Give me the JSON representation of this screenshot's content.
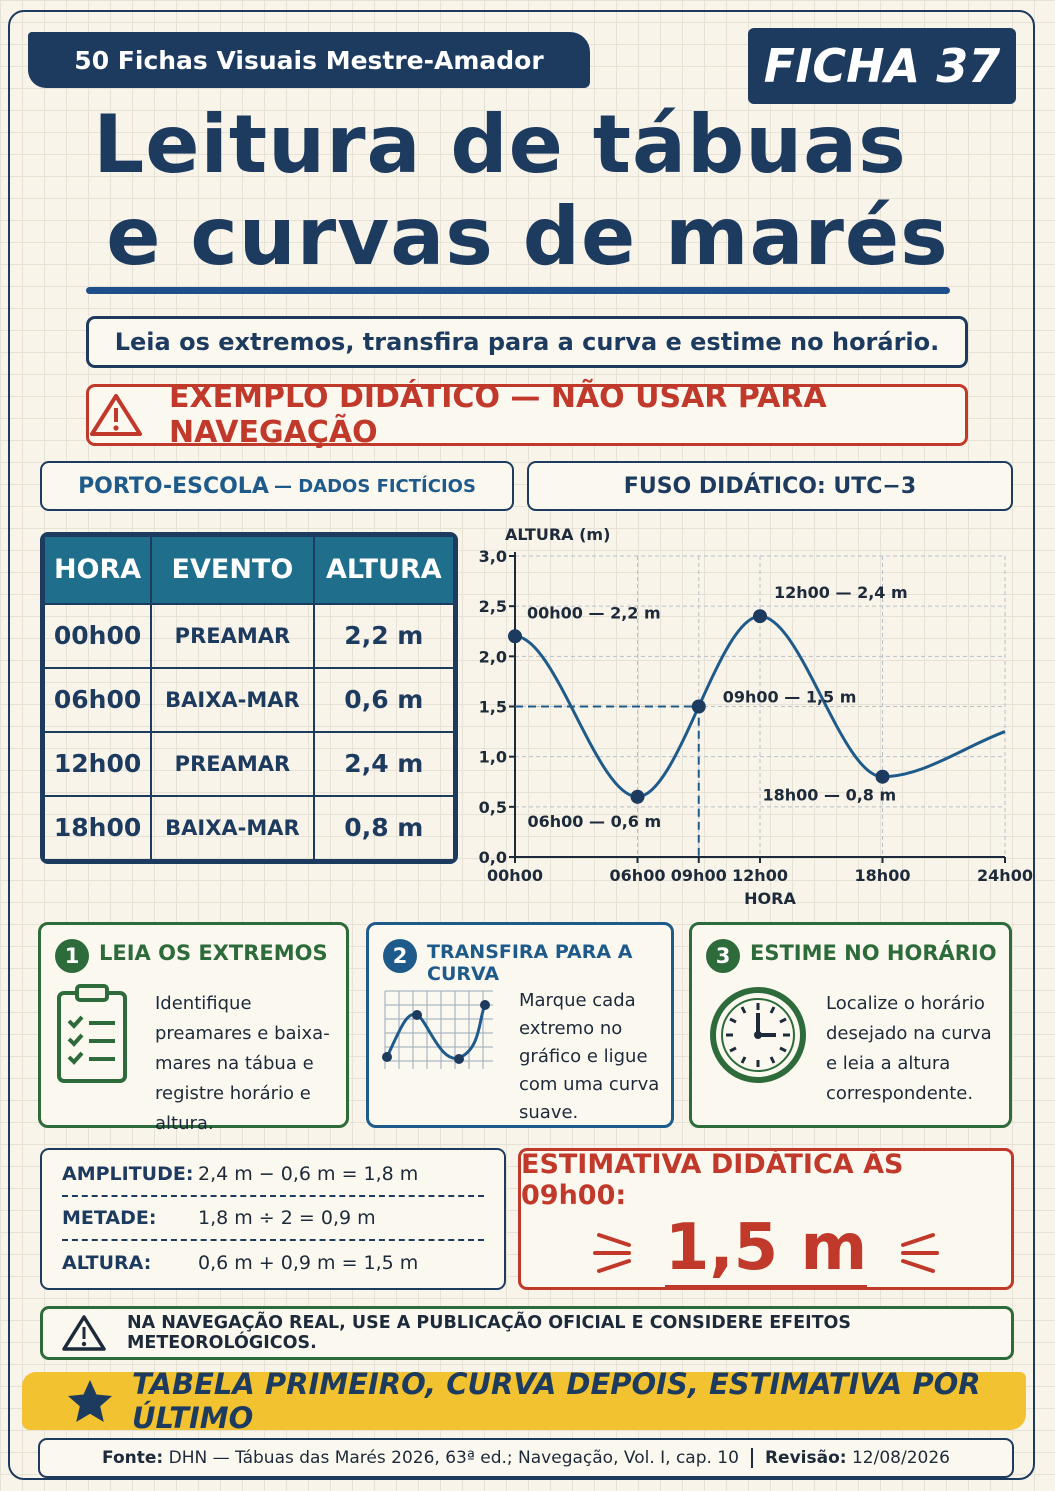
{
  "header": {
    "series": "50 Fichas Visuais Mestre-Amador",
    "sheet": "FICHA 37",
    "title_line1": "Leitura de tábuas",
    "title_line2": "e curvas de marés"
  },
  "summary": "Leia os extremos, transfira para a curva e estime no horário.",
  "warning": "EXEMPLO DIDÁTICO — NÃO USAR PARA NAVEGAÇÃO",
  "port": {
    "name": "PORTO-ESCOLA",
    "note": "— DADOS FICTÍCIOS"
  },
  "timezone": "FUSO DIDÁTICO: UTC−3",
  "table": {
    "headers": [
      "HORA",
      "EVENTO",
      "ALTURA"
    ],
    "rows": [
      [
        "00h00",
        "PREAMAR",
        "2,2 m"
      ],
      [
        "06h00",
        "BAIXA-MAR",
        "0,6 m"
      ],
      [
        "12h00",
        "PREAMAR",
        "2,4 m"
      ],
      [
        "18h00",
        "BAIXA-MAR",
        "0,8 m"
      ]
    ]
  },
  "chart_data": {
    "type": "line",
    "y_label": "ALTURA (m)",
    "x_label": "HORA",
    "x": [
      0,
      6,
      9,
      12,
      18,
      24
    ],
    "series": [
      {
        "color": "#1f5b8a",
        "values": [
          2.2,
          0.6,
          1.5,
          2.4,
          0.8,
          1.25
        ],
        "value_labels": [
          "00h00 — 2,2 m",
          "06h00 — 0,6 m",
          "09h00 — 1,5 m",
          "12h00 — 2,4 m",
          "18h00 — 0,8 m",
          null
        ]
      }
    ],
    "xlim": [
      0,
      24
    ],
    "xticks": [
      {
        "value": 0,
        "label": "00h00"
      },
      {
        "value": 6,
        "label": "06h00"
      },
      {
        "value": 9,
        "label": "09h00"
      },
      {
        "value": 12,
        "label": "12h00"
      },
      {
        "value": 18,
        "label": "18h00"
      },
      {
        "value": 24,
        "label": "24h00"
      }
    ],
    "ylim": [
      0,
      3
    ],
    "yticks": [
      {
        "value": 0,
        "label": "0,0"
      },
      {
        "value": 0.5,
        "label": "0,5"
      },
      {
        "value": 1,
        "label": "1,0"
      },
      {
        "value": 1.5,
        "label": "1,5"
      },
      {
        "value": 2,
        "label": "2,0"
      },
      {
        "value": 2.5,
        "label": "2,5"
      },
      {
        "value": 3,
        "label": "3,0"
      }
    ],
    "grid": true
  },
  "steps": [
    {
      "number": "1",
      "title": "LEIA OS EXTREMOS",
      "text": "Identifique preamares e baixa-mares na tábua e registre horário e altura."
    },
    {
      "number": "2",
      "title": "TRANSFIRA PARA A CURVA",
      "text": "Marque cada extremo no gráfico e ligue com uma curva suave."
    },
    {
      "number": "3",
      "title": "ESTIME NO HORÁRIO",
      "text": "Localize o horário desejado na curva e leia a altura correspondente."
    }
  ],
  "calculation": [
    {
      "label": "AMPLITUDE:",
      "expr": "2,4 m − 0,6 m = 1,8 m"
    },
    {
      "label": "METADE:",
      "expr": "1,8 m ÷ 2 = 0,9 m"
    },
    {
      "label": "ALTURA:",
      "expr": "0,6 m + 0,9 m = 1,5 m"
    }
  ],
  "estimate": {
    "title": "ESTIMATIVA DIDÁTICA ÀS 09h00:",
    "value": "1,5 m"
  },
  "note": "NA NAVEGAÇÃO REAL, USE A PUBLICAÇÃO OFICIAL E CONSIDERE EFEITOS METEOROLÓGICOS.",
  "banner": "TABELA PRIMEIRO, CURVA DEPOIS, ESTIMATIVA POR ÚLTIMO",
  "footer": {
    "source_label": "Fonte:",
    "source": "DHN — Tábuas das Marés 2026, 63ª ed.; Navegação, Vol. I, cap. 10",
    "revision_label": "Revisão:",
    "revision": "12/08/2026"
  }
}
